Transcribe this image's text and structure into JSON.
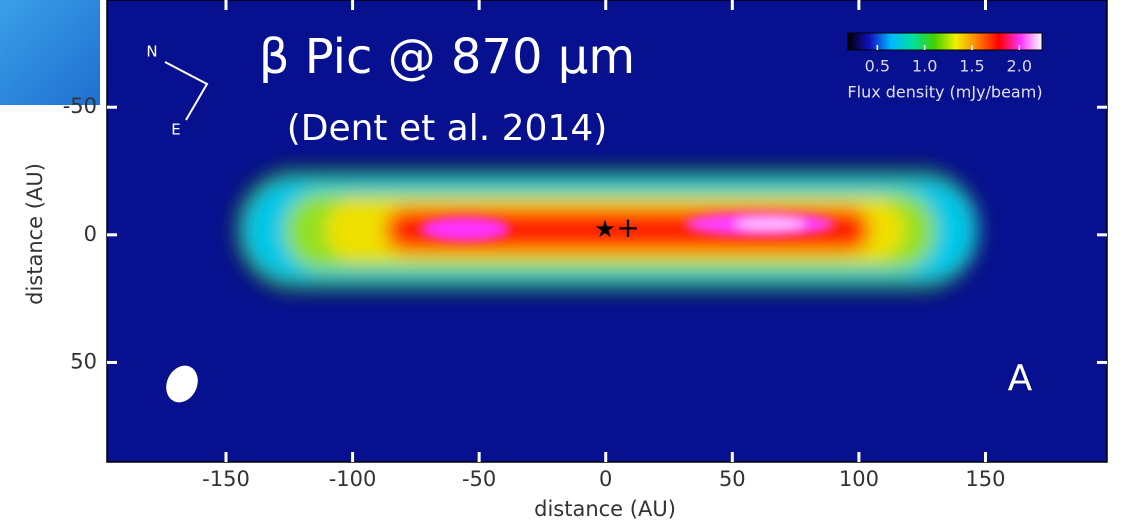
{
  "chart_data": {
    "type": "image",
    "title": "β Pic @ 870 µm",
    "subtitle": "(Dent et al. 2014)",
    "xlabel": "distance (AU)",
    "ylabel": "distance (AU)",
    "xlim": [
      -197,
      198
    ],
    "ylim": [
      -92,
      89
    ],
    "y_inverted": true,
    "xticks": [
      -150,
      -100,
      -50,
      0,
      50,
      100,
      150
    ],
    "yticks": [
      -50,
      0,
      50
    ],
    "panel_label": "A",
    "compass": {
      "north": "N",
      "east": "E"
    },
    "colorbar": {
      "label": "Flux density (mJy/beam)",
      "lim": [
        0.19,
        2.24
      ],
      "ticks": [
        0.5,
        {
          "value": 1,
          "label": "1.0"
        },
        1.5,
        {
          "value": 2,
          "label": "2.0"
        }
      ],
      "colors": [
        "#000000",
        "#1010c0",
        "#00b8ff",
        "#00e0a0",
        "#40d000",
        "#f0f000",
        "#ff8000",
        "#ff0000",
        "#ff30ff",
        "#ffffff"
      ]
    }
  }
}
